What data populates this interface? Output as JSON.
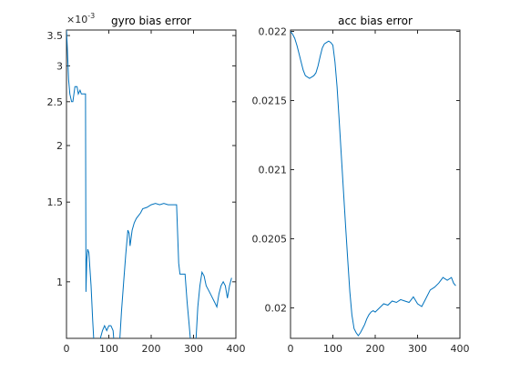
{
  "chart_data": [
    {
      "type": "line",
      "title": "gyro bias error",
      "xlabel": "",
      "ylabel": "",
      "scale_note": "×10",
      "scale_exponent": "-3",
      "xlim": [
        0,
        400
      ],
      "ylim": [
        0.00075,
        0.0036
      ],
      "xticks": [
        0,
        100,
        200,
        300,
        400
      ],
      "yticks": [
        {
          "value": 0.001,
          "label": "1"
        },
        {
          "value": 0.0015,
          "label": "1.5"
        },
        {
          "value": 0.002,
          "label": "2"
        },
        {
          "value": 0.0025,
          "label": "2.5"
        },
        {
          "value": 0.003,
          "label": "3"
        },
        {
          "value": 0.0035,
          "label": "3.5"
        }
      ],
      "line_color": "#0072BD",
      "series": [
        {
          "x": [
            0,
            2,
            5,
            8,
            12,
            15,
            20,
            25,
            28,
            32,
            35,
            40,
            43,
            45,
            46,
            48,
            50,
            53,
            55,
            58,
            62,
            66,
            70,
            75,
            80,
            85,
            90,
            95,
            100,
            105,
            110,
            115,
            120,
            125,
            130,
            135,
            140,
            145,
            148,
            150,
            155,
            160,
            165,
            170,
            175,
            180,
            190,
            200,
            210,
            220,
            230,
            240,
            250,
            260,
            265,
            268,
            270,
            275,
            280,
            285,
            290,
            295,
            300,
            305,
            310,
            315,
            320,
            325,
            330,
            335,
            340,
            345,
            350,
            355,
            360,
            365,
            370,
            375,
            380,
            385,
            390
          ],
          "y": [
            0.0036,
            0.0033,
            0.0028,
            0.0026,
            0.0025,
            0.0025,
            0.0027,
            0.0027,
            0.0026,
            0.00265,
            0.0026,
            0.0026,
            0.0026,
            0.0026,
            0.00095,
            0.00112,
            0.00118,
            0.00116,
            0.00108,
            0.00098,
            0.00082,
            0.0007,
            0.00066,
            0.00068,
            0.00075,
            0.00078,
            0.0008,
            0.00078,
            0.0008,
            0.0008,
            0.00078,
            0.00068,
            0.00066,
            0.00072,
            0.00086,
            0.001,
            0.00115,
            0.0013,
            0.00128,
            0.0012,
            0.0013,
            0.00135,
            0.00138,
            0.0014,
            0.00142,
            0.00145,
            0.00146,
            0.00148,
            0.00149,
            0.00148,
            0.00149,
            0.00148,
            0.00148,
            0.00148,
            0.0011,
            0.00104,
            0.00104,
            0.00104,
            0.00104,
            0.0009,
            0.0008,
            0.0007,
            0.00066,
            0.00072,
            0.00088,
            0.00098,
            0.00105,
            0.00103,
            0.00098,
            0.00096,
            0.00094,
            0.00092,
            0.0009,
            0.00088,
            0.00094,
            0.00098,
            0.001,
            0.00098,
            0.00092,
            0.00098,
            0.00102
          ]
        }
      ]
    },
    {
      "type": "line",
      "title": "acc bias error",
      "xlabel": "",
      "ylabel": "",
      "xlim": [
        0,
        400
      ],
      "ylim": [
        0.01978,
        0.02201
      ],
      "xticks": [
        0,
        100,
        200,
        300,
        400
      ],
      "yticks": [
        {
          "value": 0.02,
          "label": "0.02"
        },
        {
          "value": 0.0205,
          "label": "0.0205"
        },
        {
          "value": 0.021,
          "label": "0.021"
        },
        {
          "value": 0.0215,
          "label": "0.0215"
        },
        {
          "value": 0.022,
          "label": "0.022"
        }
      ],
      "line_color": "#0072BD",
      "series": [
        {
          "x": [
            0,
            5,
            10,
            15,
            20,
            25,
            30,
            35,
            40,
            45,
            50,
            55,
            60,
            65,
            70,
            75,
            80,
            85,
            90,
            95,
            100,
            105,
            110,
            115,
            120,
            125,
            130,
            135,
            140,
            145,
            150,
            155,
            160,
            165,
            170,
            175,
            180,
            185,
            190,
            195,
            200,
            210,
            220,
            230,
            240,
            250,
            260,
            270,
            280,
            290,
            300,
            310,
            320,
            330,
            340,
            350,
            360,
            370,
            380,
            385,
            390
          ],
          "y": [
            0.022,
            0.02198,
            0.02195,
            0.0219,
            0.02184,
            0.02178,
            0.02172,
            0.02168,
            0.02167,
            0.02166,
            0.02167,
            0.02168,
            0.0217,
            0.02175,
            0.02182,
            0.02188,
            0.02191,
            0.02192,
            0.02193,
            0.02192,
            0.0219,
            0.02178,
            0.0216,
            0.02135,
            0.0211,
            0.02085,
            0.0206,
            0.02035,
            0.02012,
            0.01995,
            0.01985,
            0.01982,
            0.0198,
            0.01982,
            0.01985,
            0.01988,
            0.01992,
            0.01995,
            0.01997,
            0.01998,
            0.01997,
            0.02,
            0.02003,
            0.02002,
            0.02005,
            0.02004,
            0.02006,
            0.02005,
            0.02004,
            0.02008,
            0.02003,
            0.02001,
            0.02007,
            0.02013,
            0.02015,
            0.02018,
            0.02022,
            0.0202,
            0.02022,
            0.02018,
            0.02016
          ]
        }
      ]
    }
  ]
}
